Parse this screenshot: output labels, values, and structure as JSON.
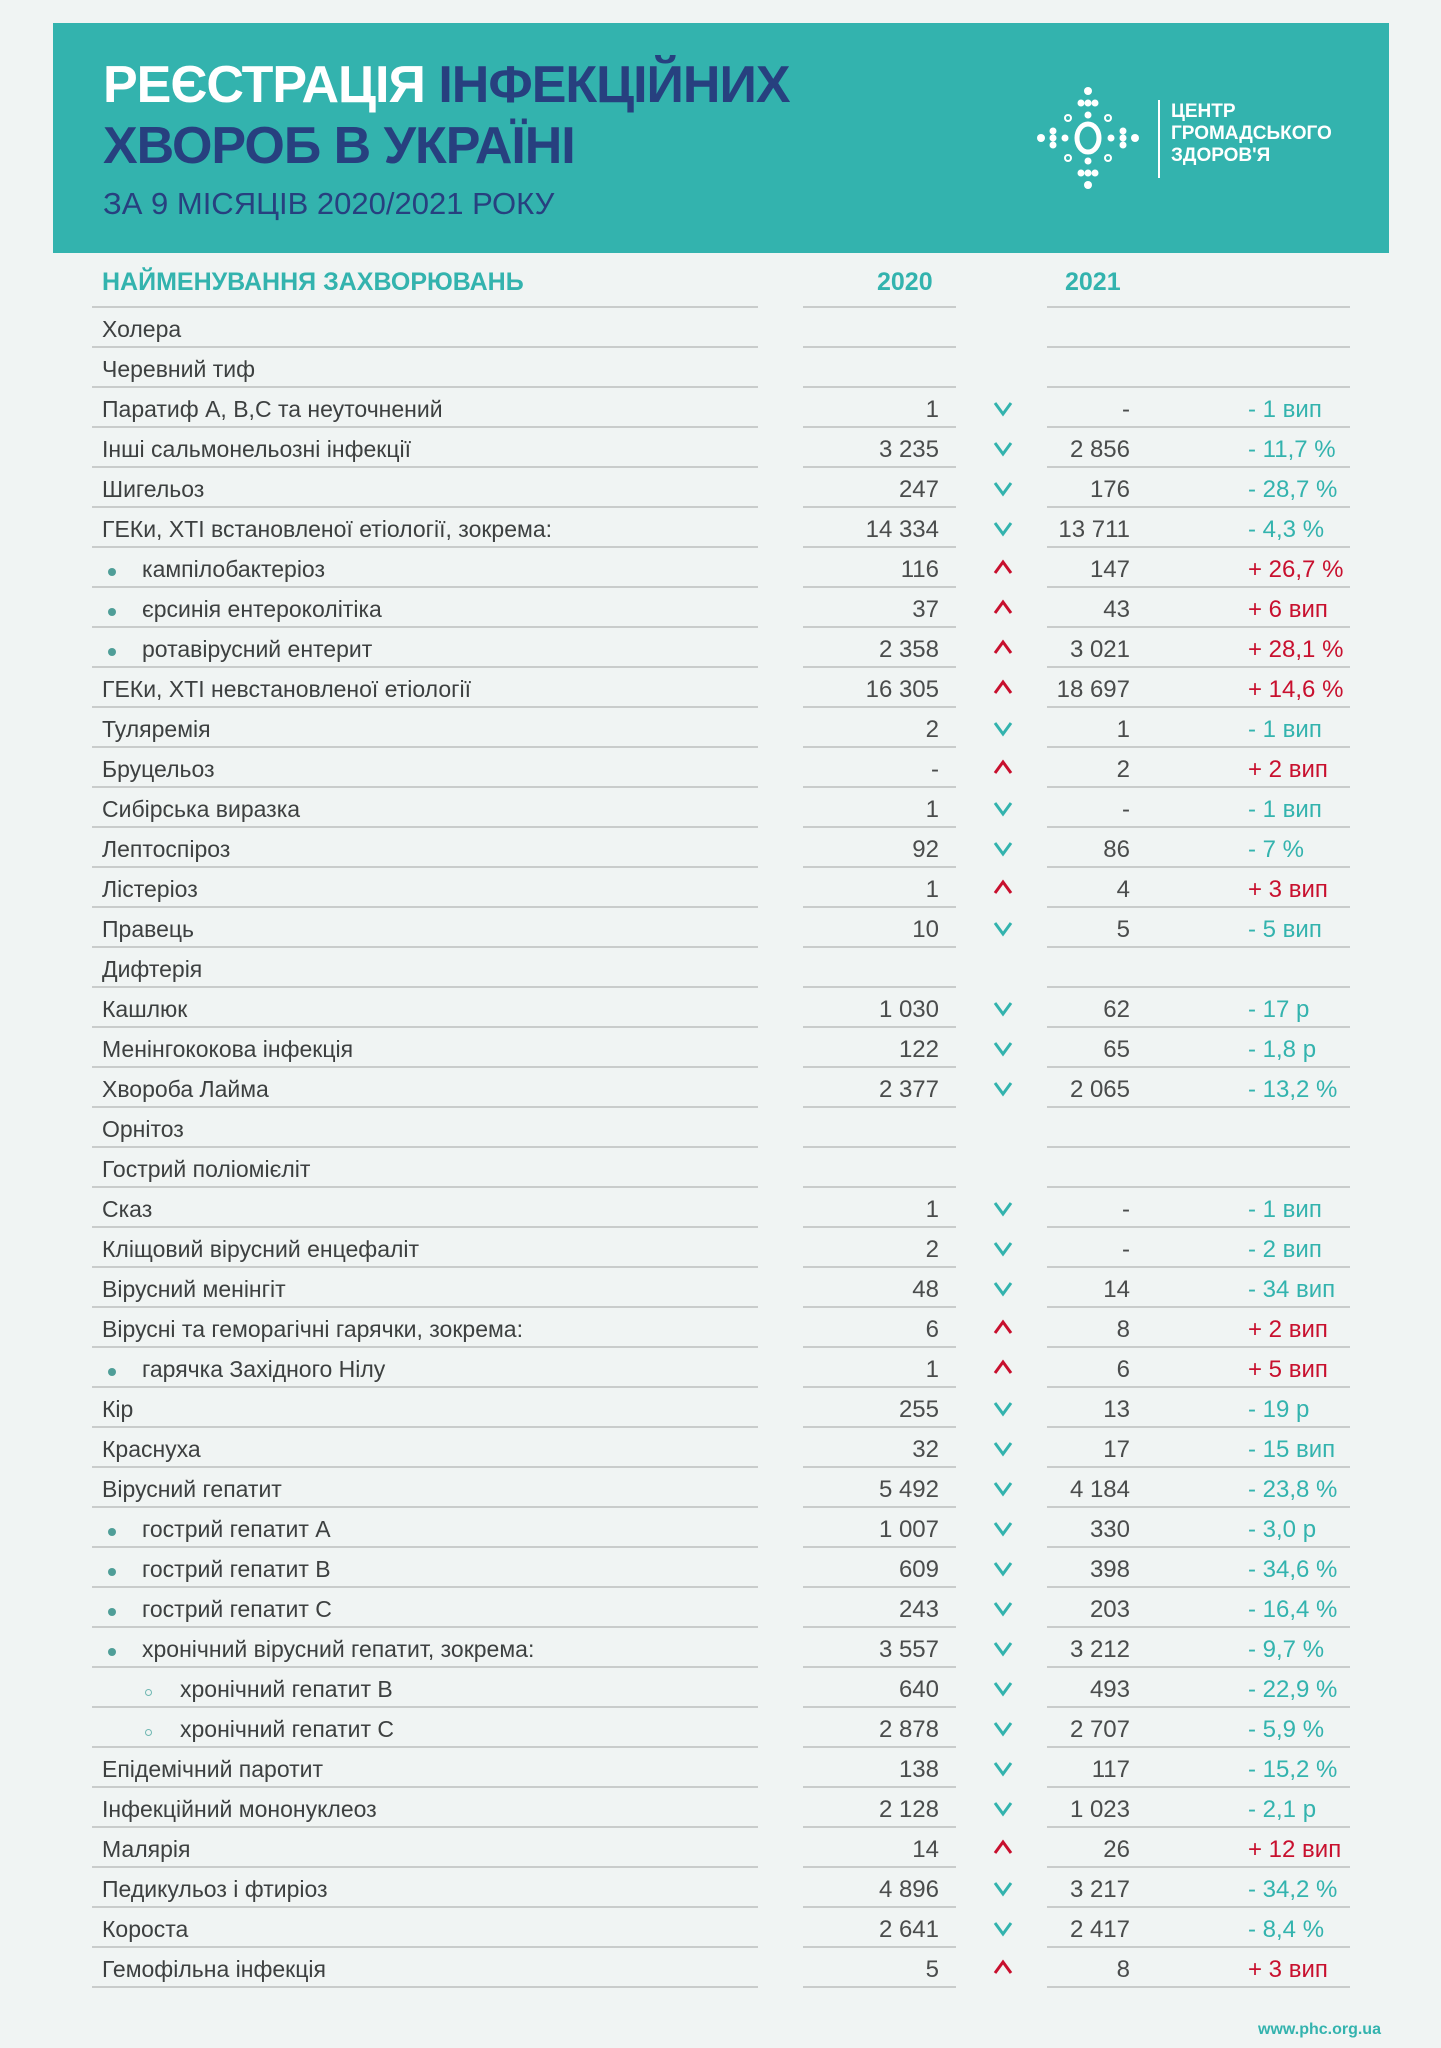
{
  "header": {
    "title_part1": "РЕЄСТРАЦІЯ",
    "title_part2": "ІНФЕКЦІЙНИХ",
    "title_line2": "ХВОРОБ В УКРАЇНІ",
    "subtitle": "ЗА 9 МІСЯЦІВ 2020/2021 РОКУ",
    "logo_text": [
      "ЦЕНТР",
      "ГРОМАДСЬКОГО",
      "ЗДОРОВ'Я"
    ]
  },
  "colors": {
    "teal": "#33b3ae",
    "navy": "#27407f",
    "decrease": "#33b3ae",
    "increase": "#c8102e"
  },
  "table": {
    "columns": {
      "name": "НАЙМЕНУВАННЯ ЗАХВОРЮВАНЬ",
      "y2020": "2020",
      "y2021": "2021"
    },
    "rows": [
      {
        "name": "Холера",
        "level": 0,
        "v2020": "",
        "v2021": "",
        "trend": "",
        "change": ""
      },
      {
        "name": "Черевний тиф",
        "level": 0,
        "v2020": "",
        "v2021": "",
        "trend": "",
        "change": ""
      },
      {
        "name": "Паратиф А, В,С та неуточнений",
        "level": 0,
        "v2020": "1",
        "v2021": "-",
        "trend": "down",
        "change": "- 1 вип"
      },
      {
        "name": "Інші сальмонельозні інфекції",
        "level": 0,
        "v2020": "3 235",
        "v2021": "2 856",
        "trend": "down",
        "change": "- 11,7 %"
      },
      {
        "name": "Шигельоз",
        "level": 0,
        "v2020": "247",
        "v2021": "176",
        "trend": "down",
        "change": "- 28,7 %"
      },
      {
        "name": "ГЕКи, ХТІ встановленої етіології, зокрема:",
        "level": 0,
        "v2020": "14 334",
        "v2021": "13 711",
        "trend": "down",
        "change": "- 4,3 %"
      },
      {
        "name": "кампілобактеріоз",
        "level": 1,
        "v2020": "116",
        "v2021": "147",
        "trend": "up",
        "change": "+ 26,7 %"
      },
      {
        "name": "єрсинія ентероколітіка",
        "level": 1,
        "v2020": "37",
        "v2021": "43",
        "trend": "up",
        "change": "+ 6 вип"
      },
      {
        "name": "ротавірусний ентерит",
        "level": 1,
        "v2020": "2 358",
        "v2021": "3 021",
        "trend": "up",
        "change": "+ 28,1 %"
      },
      {
        "name": "ГЕКи, ХТІ невстановленої етіології",
        "level": 0,
        "v2020": "16 305",
        "v2021": "18 697",
        "trend": "up",
        "change": "+ 14,6 %"
      },
      {
        "name": "Туляремія",
        "level": 0,
        "v2020": "2",
        "v2021": "1",
        "trend": "down",
        "change": "- 1 вип"
      },
      {
        "name": "Бруцельоз",
        "level": 0,
        "v2020": "-",
        "v2021": "2",
        "trend": "up",
        "change": "+ 2 вип"
      },
      {
        "name": "Сибірська виразка",
        "level": 0,
        "v2020": "1",
        "v2021": "-",
        "trend": "down",
        "change": "- 1 вип"
      },
      {
        "name": "Лептоспіроз",
        "level": 0,
        "v2020": "92",
        "v2021": "86",
        "trend": "down",
        "change": "- 7 %"
      },
      {
        "name": "Лістеріоз",
        "level": 0,
        "v2020": "1",
        "v2021": "4",
        "trend": "up",
        "change": "+ 3 вип"
      },
      {
        "name": "Правець",
        "level": 0,
        "v2020": "10",
        "v2021": "5",
        "trend": "down",
        "change": "- 5 вип"
      },
      {
        "name": "Дифтерія",
        "level": 0,
        "v2020": "",
        "v2021": "",
        "trend": "",
        "change": ""
      },
      {
        "name": "Кашлюк",
        "level": 0,
        "v2020": "1 030",
        "v2021": "62",
        "trend": "down",
        "change": "- 17 р"
      },
      {
        "name": "Менінгококова інфекція",
        "level": 0,
        "v2020": "122",
        "v2021": "65",
        "trend": "down",
        "change": "- 1,8 р"
      },
      {
        "name": "Хвороба Лайма",
        "level": 0,
        "v2020": "2 377",
        "v2021": "2 065",
        "trend": "down",
        "change": "- 13,2 %"
      },
      {
        "name": "Орнітоз",
        "level": 0,
        "v2020": "",
        "v2021": "",
        "trend": "",
        "change": ""
      },
      {
        "name": "Гострий поліомієліт",
        "level": 0,
        "v2020": "",
        "v2021": "",
        "trend": "",
        "change": ""
      },
      {
        "name": "Сказ",
        "level": 0,
        "v2020": "1",
        "v2021": "-",
        "trend": "down",
        "change": "- 1 вип"
      },
      {
        "name": "Кліщовий вірусний енцефаліт",
        "level": 0,
        "v2020": "2",
        "v2021": "-",
        "trend": "down",
        "change": "- 2 вип"
      },
      {
        "name": "Вірусний менінгіт",
        "level": 0,
        "v2020": "48",
        "v2021": "14",
        "trend": "down",
        "change": "- 34 вип"
      },
      {
        "name": "Вірусні та геморагічні гарячки, зокрема:",
        "level": 0,
        "v2020": "6",
        "v2021": "8",
        "trend": "up",
        "change": "+ 2 вип"
      },
      {
        "name": "гарячка Західного Нілу",
        "level": 1,
        "v2020": "1",
        "v2021": "6",
        "trend": "up",
        "change": "+ 5 вип"
      },
      {
        "name": "Кір",
        "level": 0,
        "v2020": "255",
        "v2021": "13",
        "trend": "down",
        "change": "- 19 р"
      },
      {
        "name": "Краснуха",
        "level": 0,
        "v2020": "32",
        "v2021": "17",
        "trend": "down",
        "change": "- 15 вип"
      },
      {
        "name": "Вірусний гепатит",
        "level": 0,
        "v2020": "5 492",
        "v2021": "4 184",
        "trend": "down",
        "change": "- 23,8 %"
      },
      {
        "name": "гострий гепатит А",
        "level": 1,
        "v2020": "1 007",
        "v2021": "330",
        "trend": "down",
        "change": "- 3,0 р"
      },
      {
        "name": "гострий гепатит В",
        "level": 1,
        "v2020": "609",
        "v2021": "398",
        "trend": "down",
        "change": "- 34,6 %"
      },
      {
        "name": "гострий гепатит С",
        "level": 1,
        "v2020": "243",
        "v2021": "203",
        "trend": "down",
        "change": "- 16,4 %"
      },
      {
        "name": "хронічний вірусний гепатит, зокрема:",
        "level": 1,
        "v2020": "3 557",
        "v2021": "3 212",
        "trend": "down",
        "change": "- 9,7 %"
      },
      {
        "name": "хронічний гепатит В",
        "level": 2,
        "v2020": "640",
        "v2021": "493",
        "trend": "down",
        "change": "- 22,9 %"
      },
      {
        "name": "хронічний гепатит С",
        "level": 2,
        "v2020": "2 878",
        "v2021": "2 707",
        "trend": "down",
        "change": "- 5,9 %"
      },
      {
        "name": "Епідемічний паротит",
        "level": 0,
        "v2020": "138",
        "v2021": "117",
        "trend": "down",
        "change": "- 15,2 %"
      },
      {
        "name": "Інфекційний мононуклеоз",
        "level": 0,
        "v2020": "2 128",
        "v2021": "1 023",
        "trend": "down",
        "change": "- 2,1 р"
      },
      {
        "name": "Малярія",
        "level": 0,
        "v2020": "14",
        "v2021": "26",
        "trend": "up",
        "change": "+ 12 вип"
      },
      {
        "name": "Педикульоз і фтиріоз",
        "level": 0,
        "v2020": "4 896",
        "v2021": "3 217",
        "trend": "down",
        "change": "- 34,2 %"
      },
      {
        "name": "Короста",
        "level": 0,
        "v2020": "2 641",
        "v2021": "2 417",
        "trend": "down",
        "change": "- 8,4 %"
      },
      {
        "name": "Гемофільна інфекція",
        "level": 0,
        "v2020": "5",
        "v2021": "8",
        "trend": "up",
        "change": "+ 3 вип"
      }
    ]
  },
  "footer": {
    "url": "www.phc.org.ua"
  }
}
